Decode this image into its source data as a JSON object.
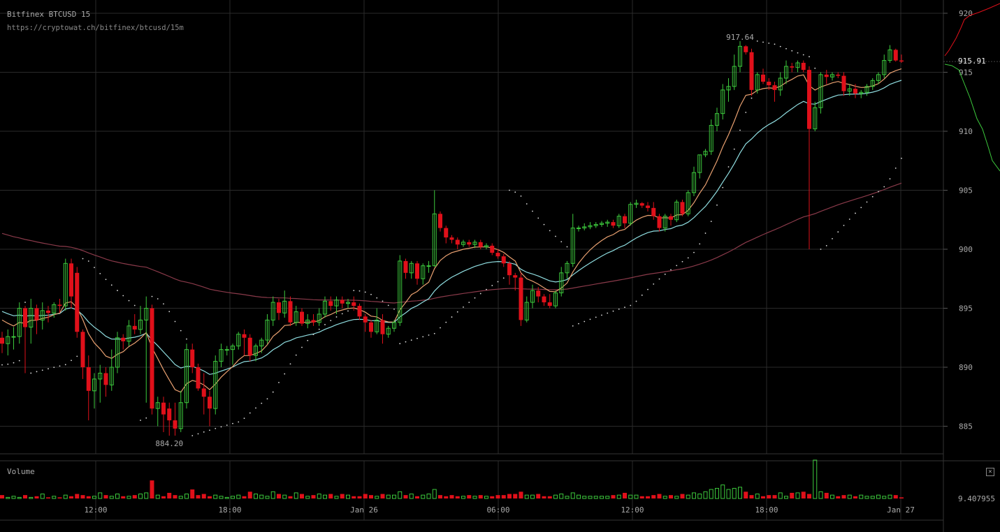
{
  "header": {
    "title": "Bitfinex BTCUSD 15",
    "url": "https://cryptowat.ch/bitfinex/btcusd/15m"
  },
  "volume_panel": {
    "label": "Volume",
    "last_value_label": "9.407955",
    "close_symbol": "×"
  },
  "colors": {
    "background": "#000000",
    "grid": "#2a2a2a",
    "up": "#3cc83c",
    "down": "#e0101a",
    "ema_fast": "#e8a070",
    "ema_slow": "#8fdde0",
    "ma_long": "#8a3a4a",
    "sar": "#dddddd",
    "axis_text": "#aaaaaa"
  },
  "chart_data": {
    "type": "candlestick",
    "exchange": "Bitfinex",
    "pair": "BTCUSD",
    "interval": "15m",
    "y_ticks": [
      920,
      915,
      910,
      905,
      900,
      895,
      890,
      885
    ],
    "x_ticks": [
      "12:00",
      "18:00",
      "Jan 26",
      "06:00",
      "12:00",
      "18:00",
      "Jan 27"
    ],
    "last_price_label": "915.91",
    "annotations": {
      "high_label": "917.64",
      "low_label": "884.20"
    },
    "ohlc": [
      [
        892.5,
        893.0,
        891.2,
        892.0
      ],
      [
        892.0,
        893.2,
        891.0,
        892.6
      ],
      [
        892.6,
        893.4,
        891.5,
        892.6
      ],
      [
        892.6,
        895.5,
        892.0,
        895.0
      ],
      [
        895.0,
        895.2,
        889.5,
        893.4
      ],
      [
        893.4,
        895.8,
        892.0,
        895.0
      ],
      [
        895.0,
        895.3,
        892.8,
        894.0
      ],
      [
        894.0,
        895.5,
        893.2,
        894.8
      ],
      [
        894.8,
        895.2,
        893.8,
        894.6
      ],
      [
        894.6,
        895.5,
        894.2,
        895.3
      ],
      [
        895.3,
        895.8,
        894.6,
        895.2
      ],
      [
        895.2,
        899.2,
        894.8,
        898.8
      ],
      [
        898.8,
        899.2,
        895.0,
        896.0
      ],
      [
        898.0,
        898.5,
        892.5,
        893.0
      ],
      [
        893.0,
        893.2,
        889.0,
        890.0
      ],
      [
        890.0,
        891.0,
        885.5,
        888.0
      ],
      [
        888.0,
        889.5,
        886.5,
        889.0
      ],
      [
        889.0,
        890.2,
        887.0,
        889.5
      ],
      [
        889.5,
        890.0,
        887.5,
        888.5
      ],
      [
        888.5,
        891.5,
        888.0,
        890.0
      ],
      [
        890.0,
        893.0,
        889.5,
        892.5
      ],
      [
        892.5,
        892.8,
        891.5,
        892.2
      ],
      [
        892.2,
        894.0,
        891.8,
        893.5
      ],
      [
        893.5,
        894.5,
        892.8,
        893.2
      ],
      [
        893.2,
        895.2,
        892.8,
        894.0
      ],
      [
        894.0,
        896.0,
        887.0,
        895.0
      ],
      [
        895.0,
        895.3,
        886.0,
        886.5
      ],
      [
        886.5,
        887.5,
        885.0,
        887.0
      ],
      [
        887.0,
        887.5,
        884.5,
        886.0
      ],
      [
        886.5,
        887.0,
        884.2,
        885.5
      ],
      [
        885.5,
        887.0,
        884.2,
        884.8
      ],
      [
        884.8,
        888.0,
        884.5,
        887.0
      ],
      [
        887.0,
        892.0,
        886.5,
        891.5
      ],
      [
        891.5,
        892.0,
        889.5,
        890.0
      ],
      [
        890.0,
        890.3,
        888.0,
        888.2
      ],
      [
        888.2,
        889.5,
        886.0,
        887.5
      ],
      [
        887.5,
        888.0,
        885.0,
        886.5
      ],
      [
        886.5,
        891.0,
        886.0,
        890.5
      ],
      [
        890.5,
        892.0,
        890.0,
        891.5
      ],
      [
        891.5,
        891.8,
        891.0,
        891.5
      ],
      [
        891.5,
        892.0,
        890.2,
        891.8
      ],
      [
        891.8,
        893.0,
        891.5,
        892.8
      ],
      [
        892.8,
        893.2,
        891.0,
        892.5
      ],
      [
        892.5,
        892.8,
        890.5,
        891.0
      ],
      [
        891.0,
        892.0,
        890.5,
        891.8
      ],
      [
        891.8,
        892.5,
        891.2,
        892.3
      ],
      [
        892.3,
        894.5,
        892.0,
        894.0
      ],
      [
        894.0,
        896.0,
        893.5,
        895.5
      ],
      [
        895.5,
        895.8,
        894.0,
        894.6
      ],
      [
        894.6,
        896.5,
        894.2,
        895.6
      ],
      [
        895.6,
        896.0,
        893.5,
        893.8
      ],
      [
        893.8,
        895.2,
        893.5,
        894.7
      ],
      [
        894.7,
        895.0,
        893.5,
        893.7
      ],
      [
        893.7,
        894.5,
        893.3,
        894.0
      ],
      [
        894.0,
        894.5,
        893.5,
        893.8
      ],
      [
        893.8,
        895.0,
        893.5,
        894.5
      ],
      [
        894.5,
        896.0,
        894.2,
        895.6
      ],
      [
        895.6,
        896.0,
        894.8,
        895.2
      ],
      [
        895.2,
        896.0,
        894.5,
        895.7
      ],
      [
        895.7,
        896.0,
        895.0,
        895.4
      ],
      [
        895.4,
        895.8,
        895.0,
        895.5
      ],
      [
        895.5,
        896.0,
        894.8,
        895.2
      ],
      [
        895.2,
        895.4,
        894.0,
        894.3
      ],
      [
        894.3,
        894.5,
        893.0,
        893.8
      ],
      [
        893.8,
        894.0,
        892.5,
        893.0
      ],
      [
        893.0,
        895.0,
        892.8,
        894.0
      ],
      [
        894.0,
        894.5,
        892.0,
        892.8
      ],
      [
        892.8,
        893.5,
        892.5,
        893.3
      ],
      [
        893.3,
        894.0,
        893.0,
        893.8
      ],
      [
        893.8,
        899.5,
        893.5,
        899.0
      ],
      [
        899.0,
        899.2,
        897.5,
        898.0
      ],
      [
        898.0,
        899.0,
        897.5,
        898.8
      ],
      [
        898.8,
        899.0,
        897.0,
        897.5
      ],
      [
        897.5,
        898.8,
        897.0,
        898.6
      ],
      [
        898.6,
        899.0,
        898.0,
        898.6
      ],
      [
        898.6,
        905.0,
        898.5,
        903.0
      ],
      [
        903.0,
        903.2,
        901.5,
        901.8
      ],
      [
        901.8,
        902.0,
        900.5,
        901.0
      ],
      [
        901.0,
        901.2,
        900.5,
        900.8
      ],
      [
        900.8,
        901.0,
        900.0,
        900.4
      ],
      [
        900.4,
        900.8,
        900.2,
        900.6
      ],
      [
        900.6,
        900.8,
        900.2,
        900.4
      ],
      [
        900.4,
        900.8,
        900.1,
        900.6
      ],
      [
        900.6,
        900.8,
        900.0,
        900.2
      ],
      [
        900.2,
        900.5,
        900.0,
        900.3
      ],
      [
        900.3,
        900.5,
        899.5,
        899.7
      ],
      [
        899.7,
        900.0,
        899.2,
        899.4
      ],
      [
        899.4,
        899.6,
        898.5,
        898.8
      ],
      [
        898.8,
        899.0,
        897.0,
        897.8
      ],
      [
        897.8,
        898.0,
        896.5,
        897.6
      ],
      [
        897.6,
        898.0,
        893.5,
        894.0
      ],
      [
        894.0,
        896.0,
        893.8,
        895.5
      ],
      [
        895.5,
        897.0,
        895.0,
        896.5
      ],
      [
        896.5,
        896.8,
        895.5,
        896.0
      ],
      [
        896.0,
        896.2,
        895.2,
        895.5
      ],
      [
        895.5,
        896.2,
        895.0,
        895.2
      ],
      [
        895.2,
        896.5,
        895.0,
        896.3
      ],
      [
        896.3,
        898.5,
        896.0,
        898.0
      ],
      [
        898.0,
        899.0,
        897.5,
        898.8
      ],
      [
        898.8,
        903.0,
        898.5,
        901.8
      ],
      [
        901.8,
        902.0,
        901.5,
        901.8
      ],
      [
        901.8,
        902.2,
        901.6,
        901.9
      ],
      [
        901.9,
        902.3,
        901.7,
        902.0
      ],
      [
        902.0,
        902.3,
        901.8,
        902.1
      ],
      [
        902.1,
        902.4,
        901.9,
        902.2
      ],
      [
        902.2,
        902.5,
        901.9,
        902.3
      ],
      [
        902.3,
        902.5,
        901.8,
        902.0
      ],
      [
        902.0,
        903.0,
        901.8,
        902.8
      ],
      [
        902.8,
        903.0,
        901.8,
        902.2
      ],
      [
        902.2,
        904.0,
        902.0,
        903.8
      ],
      [
        903.8,
        904.2,
        903.5,
        903.9
      ],
      [
        903.9,
        904.0,
        903.5,
        903.7
      ],
      [
        903.7,
        904.0,
        903.2,
        903.5
      ],
      [
        903.5,
        904.0,
        902.5,
        902.8
      ],
      [
        902.8,
        903.0,
        901.5,
        901.8
      ],
      [
        901.8,
        903.0,
        901.5,
        902.8
      ],
      [
        902.8,
        903.0,
        902.0,
        902.5
      ],
      [
        902.5,
        904.2,
        902.3,
        904.0
      ],
      [
        904.0,
        904.2,
        902.8,
        903.0
      ],
      [
        903.0,
        905.0,
        902.8,
        904.8
      ],
      [
        904.8,
        907.0,
        904.5,
        906.5
      ],
      [
        906.5,
        908.0,
        906.0,
        908.0
      ],
      [
        908.0,
        908.5,
        907.8,
        908.3
      ],
      [
        908.3,
        911.0,
        908.0,
        910.5
      ],
      [
        910.5,
        912.0,
        910.0,
        911.5
      ],
      [
        911.5,
        914.0,
        911.0,
        913.5
      ],
      [
        913.5,
        914.5,
        912.5,
        913.8
      ],
      [
        913.8,
        916.5,
        913.5,
        915.5
      ],
      [
        915.5,
        917.64,
        915.0,
        917.2
      ],
      [
        917.2,
        917.3,
        916.5,
        916.7
      ],
      [
        916.7,
        917.0,
        913.0,
        913.5
      ],
      [
        913.5,
        915.0,
        913.2,
        914.8
      ],
      [
        914.8,
        915.3,
        914.0,
        914.2
      ],
      [
        914.2,
        914.5,
        913.5,
        913.9
      ],
      [
        913.9,
        914.2,
        912.5,
        913.5
      ],
      [
        913.5,
        915.0,
        913.0,
        914.5
      ],
      [
        914.5,
        916.0,
        914.0,
        915.5
      ],
      [
        915.5,
        915.8,
        915.0,
        915.4
      ],
      [
        915.4,
        916.0,
        915.0,
        915.8
      ],
      [
        915.8,
        916.0,
        915.0,
        915.2
      ],
      [
        915.2,
        915.5,
        900.0,
        910.2
      ],
      [
        910.2,
        912.5,
        910.0,
        912.0
      ],
      [
        912.0,
        915.0,
        911.5,
        914.8
      ],
      [
        914.8,
        915.2,
        914.0,
        914.6
      ],
      [
        914.6,
        915.0,
        914.3,
        914.8
      ],
      [
        914.8,
        915.0,
        914.5,
        914.7
      ],
      [
        914.7,
        915.0,
        913.0,
        913.4
      ],
      [
        913.4,
        914.0,
        913.0,
        913.6
      ],
      [
        913.6,
        914.0,
        912.8,
        913.2
      ],
      [
        913.2,
        913.5,
        912.8,
        913.3
      ],
      [
        913.3,
        914.0,
        913.0,
        913.8
      ],
      [
        913.8,
        914.5,
        913.5,
        914.3
      ],
      [
        914.3,
        915.0,
        914.0,
        914.8
      ],
      [
        914.8,
        916.5,
        914.5,
        916.0
      ],
      [
        916.0,
        917.3,
        915.8,
        916.9
      ],
      [
        916.9,
        917.0,
        915.9,
        916.0
      ],
      [
        916.0,
        916.5,
        915.8,
        915.91
      ]
    ],
    "volume": [
      3,
      1,
      2,
      1,
      3,
      1,
      2,
      4,
      1,
      2,
      1,
      3,
      2,
      4,
      3,
      2,
      2,
      5,
      3,
      2,
      4,
      2,
      2,
      3,
      4,
      5,
      16,
      3,
      2,
      5,
      3,
      2,
      4,
      8,
      3,
      4,
      2,
      3,
      2,
      1,
      2,
      3,
      2,
      6,
      4,
      3,
      2,
      6,
      4,
      3,
      2,
      5,
      4,
      2,
      3,
      4,
      3,
      4,
      2,
      4,
      3,
      2,
      2,
      4,
      3,
      2,
      4,
      3,
      3,
      6,
      3,
      4,
      2,
      3,
      4,
      8,
      3,
      2,
      3,
      2,
      2,
      3,
      2,
      3,
      2,
      2,
      3,
      3,
      4,
      4,
      6,
      3,
      3,
      4,
      2,
      2,
      3,
      4,
      2,
      5,
      3,
      2,
      2,
      2,
      2,
      2,
      3,
      3,
      5,
      3,
      3,
      2,
      2,
      3,
      4,
      2,
      3,
      2,
      4,
      3,
      5,
      4,
      6,
      8,
      9,
      12,
      8,
      9,
      10,
      6,
      3,
      4,
      2,
      3,
      3,
      5,
      2,
      5,
      5,
      6,
      4,
      34,
      6,
      5,
      3,
      2,
      3,
      3,
      2,
      3,
      2,
      2,
      3,
      2,
      3,
      3,
      1
    ],
    "volume_max": 34
  }
}
